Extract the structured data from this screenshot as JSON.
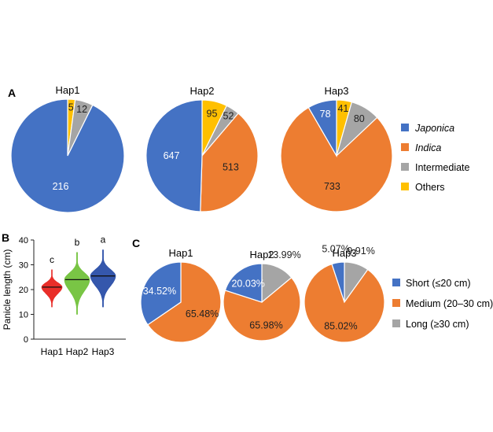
{
  "panels": {
    "a": "A",
    "b": "B",
    "c": "C"
  },
  "chart_data": [
    {
      "panel": "A",
      "type": "pie",
      "legend_position": "right",
      "legend": [
        {
          "label": "Japonica",
          "italic": true,
          "color": "#4472C4"
        },
        {
          "label": "Indica",
          "italic": true,
          "color": "#ED7D31"
        },
        {
          "label": "Intermediate",
          "italic": false,
          "color": "#A5A5A5"
        },
        {
          "label": "Others",
          "italic": false,
          "color": "#FFC000"
        }
      ],
      "pies": [
        {
          "title": "Hap1",
          "values": [
            216,
            0,
            12,
            5
          ]
        },
        {
          "title": "Hap2",
          "values": [
            647,
            513,
            52,
            95
          ]
        },
        {
          "title": "Hap3",
          "values": [
            78,
            733,
            80,
            41
          ]
        }
      ]
    },
    {
      "panel": "B",
      "type": "violin",
      "ylabel": "Panicle length (cm)",
      "ylim": [
        0,
        40
      ],
      "yticks": [
        0,
        10,
        20,
        30,
        40
      ],
      "grid": false,
      "categories": [
        "Hap1",
        "Hap2",
        "Hap3"
      ],
      "colors": [
        "#E8231E",
        "#72C23B",
        "#2A4EA8"
      ],
      "medians": [
        21,
        24,
        25.5
      ],
      "ranges": [
        [
          13,
          28
        ],
        [
          10,
          35
        ],
        [
          13,
          36
        ]
      ],
      "significance": [
        "c",
        "b",
        "a"
      ]
    },
    {
      "panel": "C",
      "type": "pie",
      "legend_position": "right",
      "legend": [
        {
          "label": "Short (≤20 cm)",
          "color": "#4472C4"
        },
        {
          "label": "Medium (20–30 cm)",
          "color": "#ED7D31"
        },
        {
          "label": "Long (≥30 cm)",
          "color": "#A5A5A5"
        }
      ],
      "pies": [
        {
          "title": "Hap1",
          "values": [
            34.52,
            65.48,
            0
          ],
          "labels": [
            "34.52%",
            "65.48%",
            ""
          ]
        },
        {
          "title": "Hap2",
          "values": [
            20.03,
            65.98,
            13.99
          ],
          "labels": [
            "20.03%",
            "65.98%",
            "13.99%"
          ]
        },
        {
          "title": "Hap3",
          "values": [
            5.07,
            85.02,
            9.91
          ],
          "labels": [
            "5.07%",
            "85.02%",
            "9.91%"
          ]
        }
      ]
    }
  ]
}
